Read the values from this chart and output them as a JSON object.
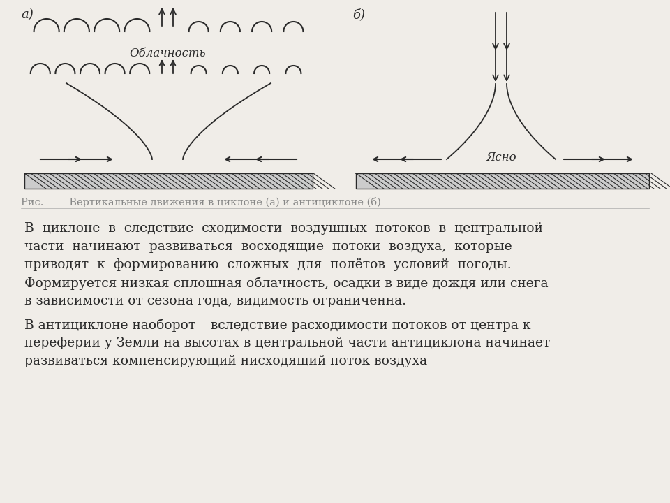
{
  "bg_color": "#f0ede8",
  "line_color": "#2a2a2a",
  "fig_caption": "Рис.        Вертикальные движения в циклоне (а) и антициклоне (б)",
  "label_a": "а)",
  "label_b": "б)",
  "label_cloud_a": "Облачность",
  "label_clear_b": "Ясно",
  "paragraph1": "В  циклоне  в  следствие  сходимости  воздушных  потоков  в  центральной\nчасти  начинают  развиваться  восходящие  потоки  воздуха,  которые\nприводят  к  формированию  сложных  для  полётов  условий  погоды.\nФормируется низкая сплошная облачность, осадки в виде дождя или снега\nв зависимости от сезона года, видимость ограниченна.",
  "paragraph2": "В антициклоне наоборот – вследствие расходимости потоков от центра к\nпереферии у Земли на высотах в центральной части антициклона начинает\nразвиваться компенсирующий нисходящий поток воздуха"
}
